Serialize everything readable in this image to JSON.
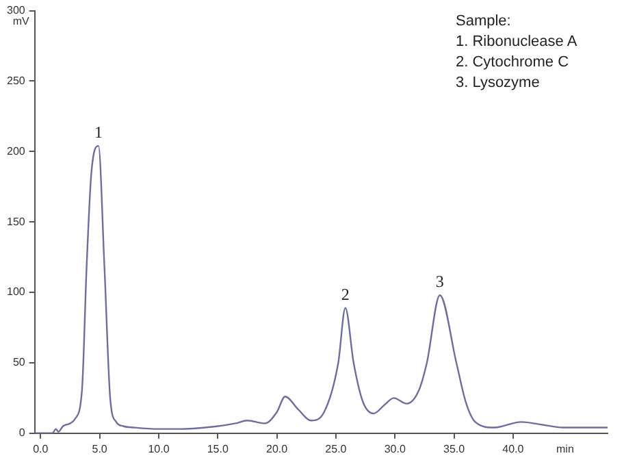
{
  "chart_data": {
    "type": "line",
    "xlabel": "min",
    "ylabel": "mV",
    "x": [
      -0.5,
      1.0,
      1.3,
      1.5,
      1.9,
      2.5,
      2.9,
      3.5,
      3.9,
      4.3,
      4.9,
      5.4,
      5.9,
      6.4,
      7.0,
      8.0,
      10.0,
      12.0,
      15.0,
      16.5,
      17.5,
      19.0,
      20.0,
      20.7,
      21.8,
      22.9,
      24.0,
      25.2,
      25.8,
      26.5,
      27.3,
      28.2,
      29.1,
      29.9,
      31.0,
      32.0,
      32.7,
      33.8,
      35.2,
      36.0,
      36.8,
      38.4,
      40.7,
      42.5,
      44.2,
      48.0
    ],
    "series": [
      {
        "color": "#6e6e9c",
        "values": [
          0,
          0,
          3,
          1,
          5,
          7,
          10,
          30,
          119,
          185,
          204,
          119,
          24,
          8,
          5,
          4,
          3,
          3,
          5,
          7,
          9,
          7,
          15,
          26,
          17,
          9,
          15,
          50,
          89,
          50,
          22,
          14,
          20,
          25,
          21,
          30,
          50,
          98,
          50,
          22,
          8,
          4,
          8,
          6,
          4,
          4
        ]
      }
    ],
    "xlim": [
      -0.5,
      48
    ],
    "ylim": [
      0,
      300
    ],
    "xticks": [
      {
        "value": 0,
        "label": "0.0"
      },
      {
        "value": 5,
        "label": "5.0"
      },
      {
        "value": 10,
        "label": "10.0"
      },
      {
        "value": 15,
        "label": "15.0"
      },
      {
        "value": 20,
        "label": "20.0"
      },
      {
        "value": 25,
        "label": "25.0"
      },
      {
        "value": 30,
        "label": "30.0"
      },
      {
        "value": 35,
        "label": "35.0"
      },
      {
        "value": 40,
        "label": "40.0"
      }
    ],
    "yticks": [
      0,
      50,
      100,
      150,
      200,
      250,
      300
    ],
    "annotations": [
      {
        "text": "1",
        "x": 4.9,
        "y": 204
      },
      {
        "text": "2",
        "x": 25.8,
        "y": 89
      },
      {
        "text": "3",
        "x": 33.8,
        "y": 98
      },
      "Sample:",
      "1. Ribonuclease A",
      "2. Cytochrome C",
      "3. Lysozyme"
    ],
    "grid": false,
    "legend": false,
    "marker": "none",
    "line_style": "solid"
  }
}
